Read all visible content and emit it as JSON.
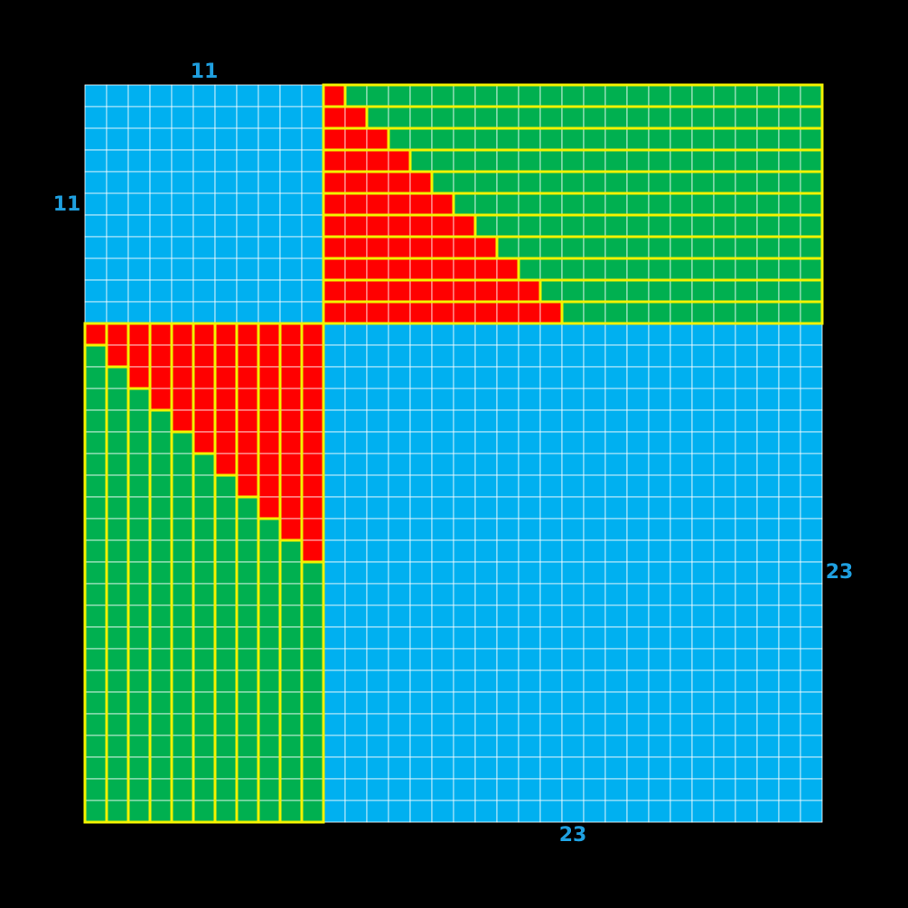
{
  "top_label": "11",
  "left_label": "11",
  "right_label": "23",
  "bottom_label": "23"
}
